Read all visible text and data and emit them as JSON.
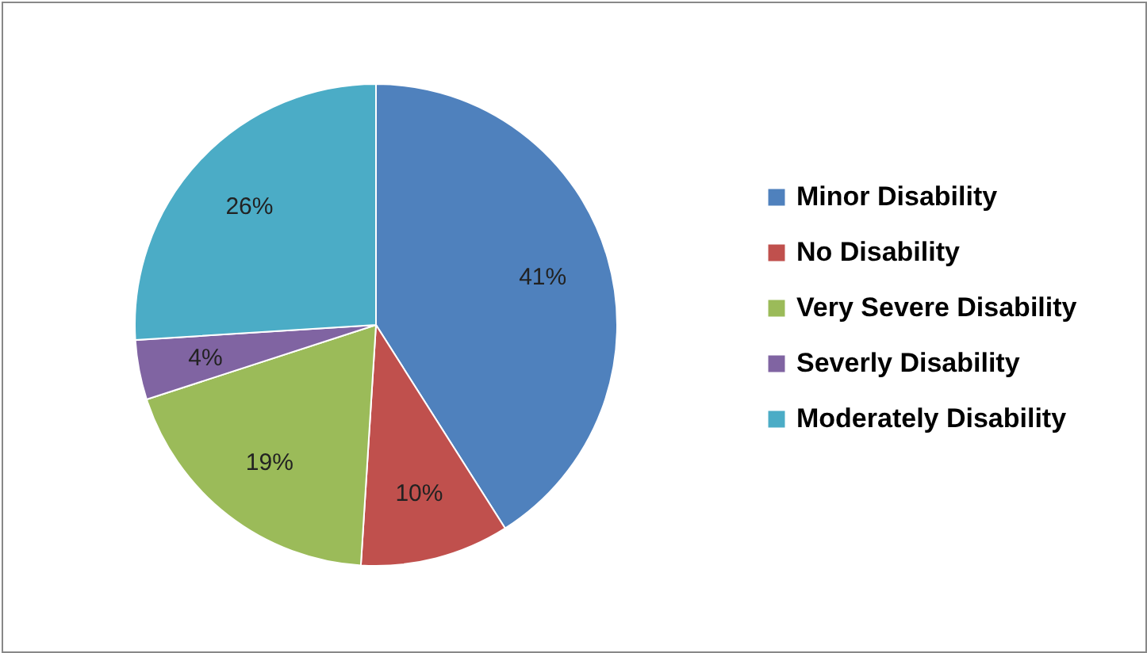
{
  "chart_data": {
    "type": "pie",
    "categories": [
      "Minor Disability",
      "No Disability",
      "Very Severe Disability",
      "Severly Disability",
      "Moderately Disability"
    ],
    "values": [
      41,
      10,
      19,
      4,
      26
    ],
    "colors": [
      "#4f81bd",
      "#c0504d",
      "#9bbb59",
      "#8064a2",
      "#4bacc6"
    ],
    "value_labels": [
      "41%",
      "10%",
      "19%",
      "4%",
      "26%"
    ],
    "legend": "right"
  }
}
